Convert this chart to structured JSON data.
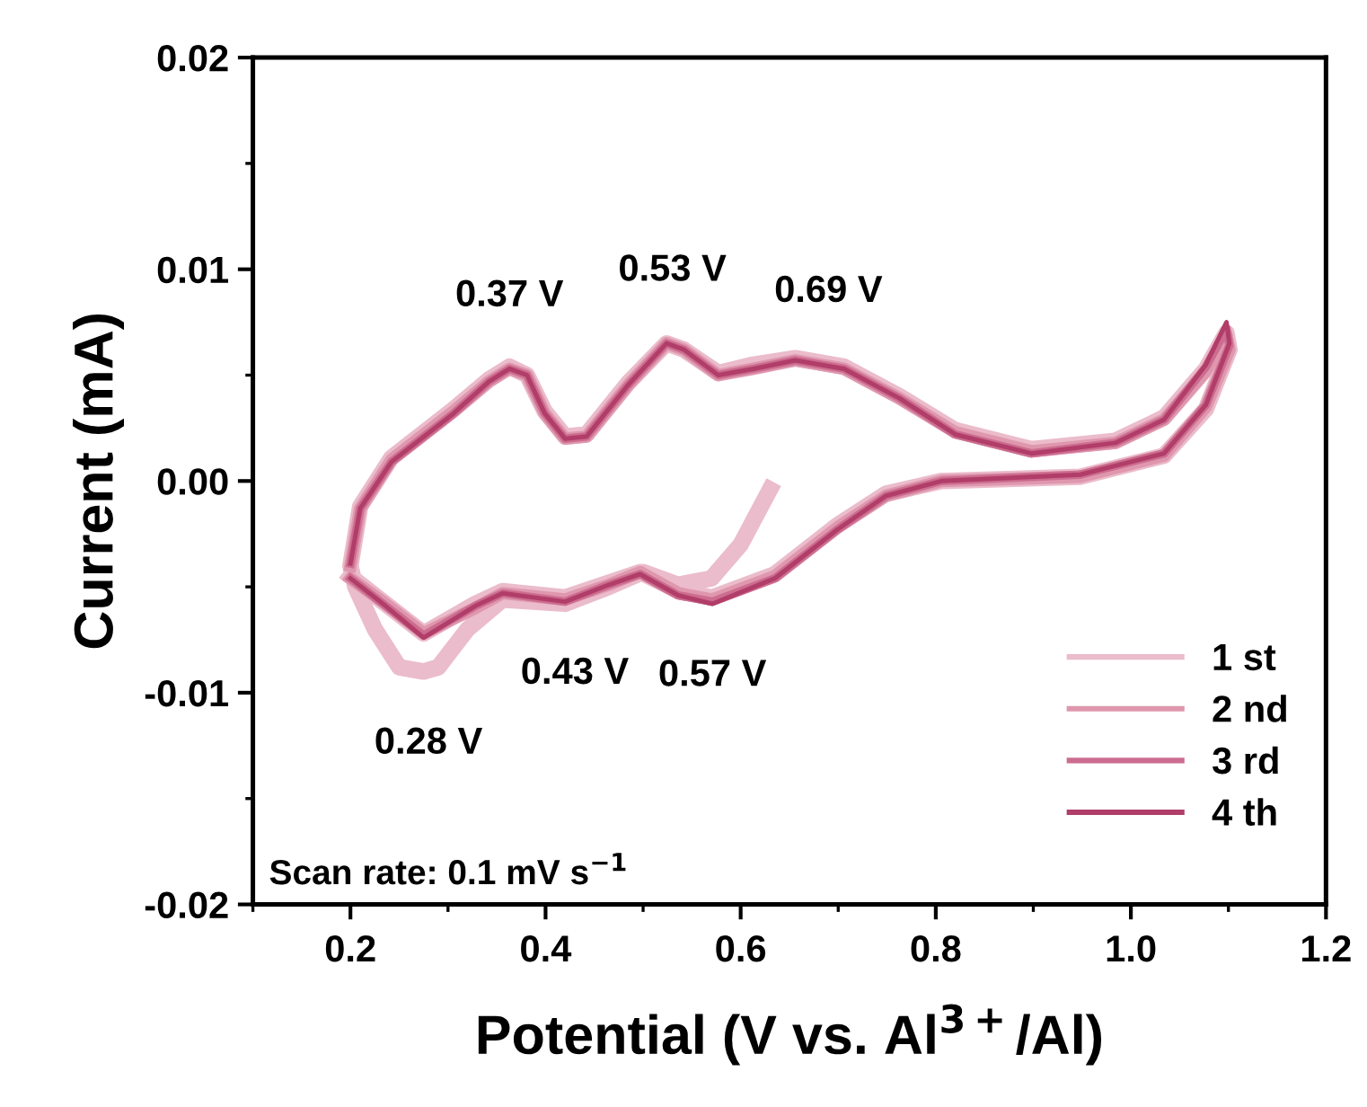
{
  "chart_data": {
    "type": "line",
    "xlabel": "Potential (V vs. Al$^{3+}$/Al)",
    "ylabel": "Current (mA)",
    "xlim": [
      0.1,
      1.2
    ],
    "xticks": [
      {
        "value": 0.2,
        "label": "0.2"
      },
      {
        "value": 0.4,
        "label": "0.4"
      },
      {
        "value": 0.6,
        "label": "0.6"
      },
      {
        "value": 0.8,
        "label": "0.8"
      },
      {
        "value": 1.0,
        "label": "1.0"
      },
      {
        "value": 1.2,
        "label": "1.2"
      }
    ],
    "ylim": [
      -0.02,
      0.02
    ],
    "yticks": [
      {
        "value": -0.02,
        "label": "-0.02"
      },
      {
        "value": -0.01,
        "label": "-0.01"
      },
      {
        "value": 0,
        "label": "0.00"
      },
      {
        "value": 0.01,
        "label": "0.01"
      },
      {
        "value": 0.02,
        "label": "0.02"
      }
    ],
    "grid": false,
    "legend": "bottom right",
    "marker": "none",
    "line_style": "solid",
    "series": [
      {
        "name": "1 st",
        "color": "#ebbccb",
        "x": [
          0.63,
          0.6,
          0.57,
          0.536,
          0.5,
          0.465,
          0.42,
          0.356,
          0.32,
          0.29,
          0.275,
          0.25,
          0.225,
          0.205,
          0.2,
          0.21,
          0.242,
          0.306,
          0.342,
          0.363,
          0.381,
          0.399,
          0.42,
          0.442,
          0.484,
          0.524,
          0.542,
          0.577,
          0.613,
          0.656,
          0.706,
          0.763,
          0.82,
          0.898,
          0.984,
          1.034,
          1.077,
          1.098,
          1.101,
          1.077,
          1.034,
          0.948,
          0.806,
          0.749,
          0.699,
          0.635,
          0.571,
          0.536,
          0.497,
          0.465,
          0.42,
          0.356,
          0.328,
          0.275,
          0.236,
          0.2
        ],
        "values": [
          -0.0004,
          -0.003,
          -0.0046,
          -0.0049,
          -0.0043,
          -0.005,
          -0.0058,
          -0.0056,
          -0.007,
          -0.0088,
          -0.009,
          -0.0088,
          -0.007,
          -0.005,
          -0.004,
          -0.0012,
          0.0011,
          0.0034,
          0.0048,
          0.0054,
          0.005,
          0.0033,
          0.0021,
          0.0022,
          0.0046,
          0.0065,
          0.0062,
          0.0051,
          0.0055,
          0.0058,
          0.0054,
          0.004,
          0.0024,
          0.0015,
          0.0019,
          0.003,
          0.0053,
          0.007,
          0.0062,
          0.0034,
          0.0012,
          0.0002,
          0.0,
          -0.0006,
          -0.0021,
          -0.0044,
          -0.0055,
          -0.0052,
          -0.0043,
          -0.0048,
          -0.0055,
          -0.0052,
          -0.0058,
          -0.0072,
          -0.0058,
          -0.0045
        ]
      },
      {
        "name": "2 nd",
        "color": "#df97ae",
        "x": [
          0.2,
          0.21,
          0.242,
          0.306,
          0.342,
          0.363,
          0.381,
          0.399,
          0.42,
          0.442,
          0.484,
          0.524,
          0.542,
          0.577,
          0.613,
          0.656,
          0.706,
          0.763,
          0.82,
          0.898,
          0.984,
          1.034,
          1.077,
          1.098,
          1.101,
          1.077,
          1.034,
          0.948,
          0.806,
          0.749,
          0.699,
          0.635,
          0.571,
          0.536,
          0.497,
          0.465,
          0.42,
          0.356,
          0.328,
          0.275,
          0.236,
          0.2
        ],
        "values": [
          -0.004,
          -0.0013,
          0.001,
          0.0033,
          0.0047,
          0.0053,
          0.005,
          0.0032,
          0.002,
          0.0021,
          0.0045,
          0.0065,
          0.0062,
          0.005,
          0.0053,
          0.0057,
          0.0053,
          0.0039,
          0.0023,
          0.0014,
          0.0018,
          0.0029,
          0.0052,
          0.0069,
          0.0062,
          0.0035,
          0.0012,
          0.0002,
          0.0,
          -0.0007,
          -0.0022,
          -0.0045,
          -0.0056,
          -0.0053,
          -0.0043,
          -0.0049,
          -0.0056,
          -0.0053,
          -0.006,
          -0.0072,
          -0.0058,
          -0.0046
        ]
      },
      {
        "name": "3 rd",
        "color": "#cc6d8f",
        "x": [
          0.2,
          0.21,
          0.242,
          0.306,
          0.342,
          0.363,
          0.381,
          0.399,
          0.42,
          0.442,
          0.484,
          0.524,
          0.542,
          0.577,
          0.613,
          0.656,
          0.706,
          0.763,
          0.82,
          0.898,
          0.984,
          1.034,
          1.077,
          1.098,
          1.101,
          1.077,
          1.034,
          0.948,
          0.806,
          0.749,
          0.699,
          0.635,
          0.571,
          0.536,
          0.497,
          0.465,
          0.42,
          0.356,
          0.328,
          0.275,
          0.236,
          0.2
        ],
        "values": [
          -0.0039,
          -0.0013,
          0.0009,
          0.0032,
          0.0047,
          0.0053,
          0.005,
          0.0032,
          0.002,
          0.0021,
          0.0045,
          0.0065,
          0.0062,
          0.005,
          0.0053,
          0.0057,
          0.0053,
          0.0039,
          0.0022,
          0.0013,
          0.0018,
          0.0029,
          0.0054,
          0.0072,
          0.0064,
          0.0036,
          0.0013,
          0.0003,
          0.0,
          -0.0007,
          -0.0023,
          -0.0046,
          -0.0057,
          -0.0054,
          -0.0044,
          -0.0049,
          -0.0057,
          -0.0053,
          -0.0059,
          -0.0073,
          -0.0059,
          -0.0046
        ]
      },
      {
        "name": "4 th",
        "color": "#b13d69",
        "x": [
          0.2,
          0.21,
          0.242,
          0.306,
          0.342,
          0.363,
          0.381,
          0.399,
          0.42,
          0.442,
          0.484,
          0.524,
          0.542,
          0.577,
          0.613,
          0.656,
          0.706,
          0.763,
          0.82,
          0.898,
          0.984,
          1.034,
          1.077,
          1.098,
          1.101,
          1.077,
          1.034,
          0.948,
          0.806,
          0.749,
          0.699,
          0.635,
          0.571,
          0.536,
          0.497,
          0.465,
          0.42,
          0.356,
          0.328,
          0.275,
          0.236,
          0.2
        ],
        "values": [
          -0.0039,
          -0.0013,
          0.0009,
          0.0032,
          0.0047,
          0.0053,
          0.005,
          0.0032,
          0.002,
          0.0021,
          0.0045,
          0.0065,
          0.0062,
          0.005,
          0.0053,
          0.0057,
          0.0053,
          0.0039,
          0.0022,
          0.0013,
          0.0018,
          0.0029,
          0.0055,
          0.0075,
          0.0065,
          0.0036,
          0.0013,
          0.0003,
          0.0,
          -0.0007,
          -0.0023,
          -0.0046,
          -0.0058,
          -0.0054,
          -0.0044,
          -0.0049,
          -0.0057,
          -0.0053,
          -0.0059,
          -0.0074,
          -0.0059,
          -0.0046
        ]
      }
    ],
    "annotations": [
      {
        "text": "0.37 V",
        "x": 0.363,
        "y": 0.0053
      },
      {
        "text": "0.53 V",
        "x": 0.53,
        "y": 0.0065
      },
      {
        "text": "0.69 V",
        "x": 0.69,
        "y": 0.0055
      },
      {
        "text": "0.28 V",
        "x": 0.28,
        "y": -0.009
      },
      {
        "text": "0.43 V",
        "x": 0.43,
        "y": -0.0057
      },
      {
        "text": "0.57 V",
        "x": 0.571,
        "y": -0.0058
      },
      "Scan rate: 0.1 mV s$^{−1}$"
    ]
  }
}
